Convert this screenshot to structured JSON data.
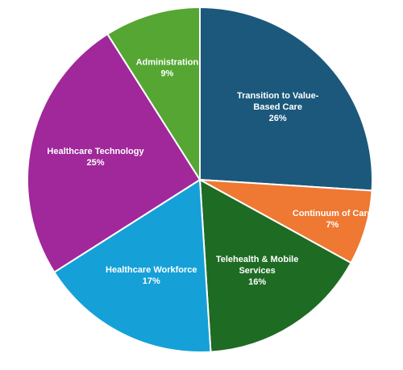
{
  "chart_data": {
    "type": "pie",
    "title": "",
    "start_angle_deg": 0,
    "direction": "clockwise",
    "slices": [
      {
        "label_lines": [
          "Transition to Value-",
          "Based Care"
        ],
        "value": 26,
        "value_label": "26%",
        "color": "#1B587C"
      },
      {
        "label_lines": [
          "Continuum of Care"
        ],
        "value": 7,
        "value_label": "7%",
        "color": "#EF7833"
      },
      {
        "label_lines": [
          "Telehealth & Mobile",
          "Services"
        ],
        "value": 16,
        "value_label": "16%",
        "color": "#1E6B24"
      },
      {
        "label_lines": [
          "Healthcare Workforce"
        ],
        "value": 17,
        "value_label": "17%",
        "color": "#16A0D8"
      },
      {
        "label_lines": [
          "Healthcare Technology"
        ],
        "value": 25,
        "value_label": "25%",
        "color": "#A0289A"
      },
      {
        "label_lines": [
          "Administration"
        ],
        "value": 9,
        "value_label": "9%",
        "color": "#55A632"
      }
    ]
  }
}
